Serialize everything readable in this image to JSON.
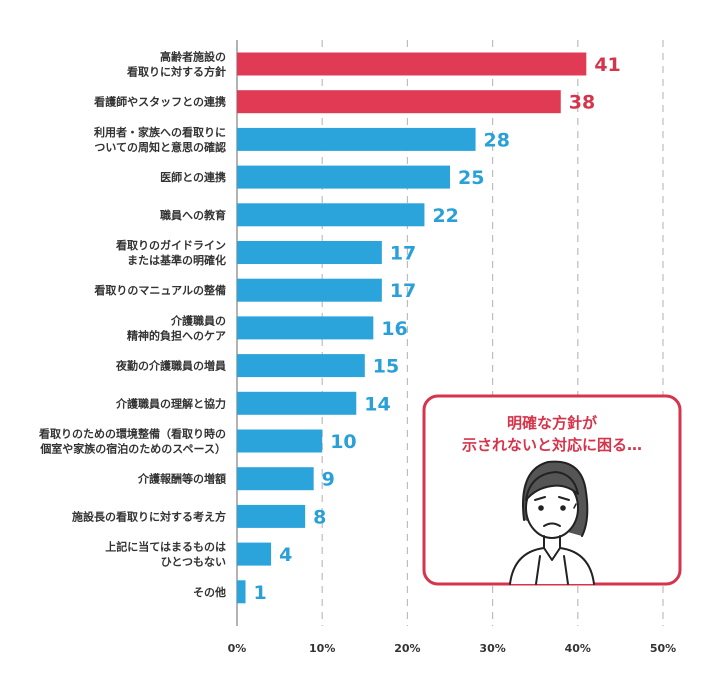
{
  "chart_data": {
    "type": "bar",
    "orientation": "horizontal",
    "categories": [
      [
        "高齢者施設の",
        "看取りに対する方針"
      ],
      [
        "看護師やスタッフとの連携"
      ],
      [
        "利用者・家族への看取りに",
        "ついての周知と意思の確認"
      ],
      [
        "医師との連携"
      ],
      [
        "職員への教育"
      ],
      [
        "看取りのガイドライン",
        "または基準の明確化"
      ],
      [
        "看取りのマニュアルの整備"
      ],
      [
        "介護職員の",
        "精神的負担へのケア"
      ],
      [
        "夜勤の介護職員の増員"
      ],
      [
        "介護職員の理解と協力"
      ],
      [
        "看取りのための環境整備（看取り時の",
        "個室や家族の宿泊のためのスペース）"
      ],
      [
        "介護報酬等の増額"
      ],
      [
        "施設長の看取りに対する考え方"
      ],
      [
        "上記に当てはまるものは",
        "ひとつもない"
      ],
      [
        "その他"
      ]
    ],
    "values": [
      41,
      38,
      28,
      25,
      22,
      17,
      17,
      16,
      15,
      14,
      10,
      9,
      8,
      4,
      1
    ],
    "highlight_count": 2,
    "xlim": [
      0,
      50
    ],
    "ticks": [
      0,
      10,
      20,
      30,
      40,
      50
    ],
    "tick_labels": [
      "0%",
      "10%",
      "20%",
      "30%",
      "40%",
      "50%"
    ],
    "grid": "vertical dashed",
    "colors": {
      "highlight": "#e03a54",
      "normal": "#2ba4dc",
      "highlight_text": "#d6344b",
      "normal_text": "#2aa0d8"
    }
  },
  "callout": {
    "lines": [
      "明確な方針が",
      "示されないと対応に困る…"
    ],
    "icon": "worried-person-icon",
    "border_color": "#d6344b"
  }
}
